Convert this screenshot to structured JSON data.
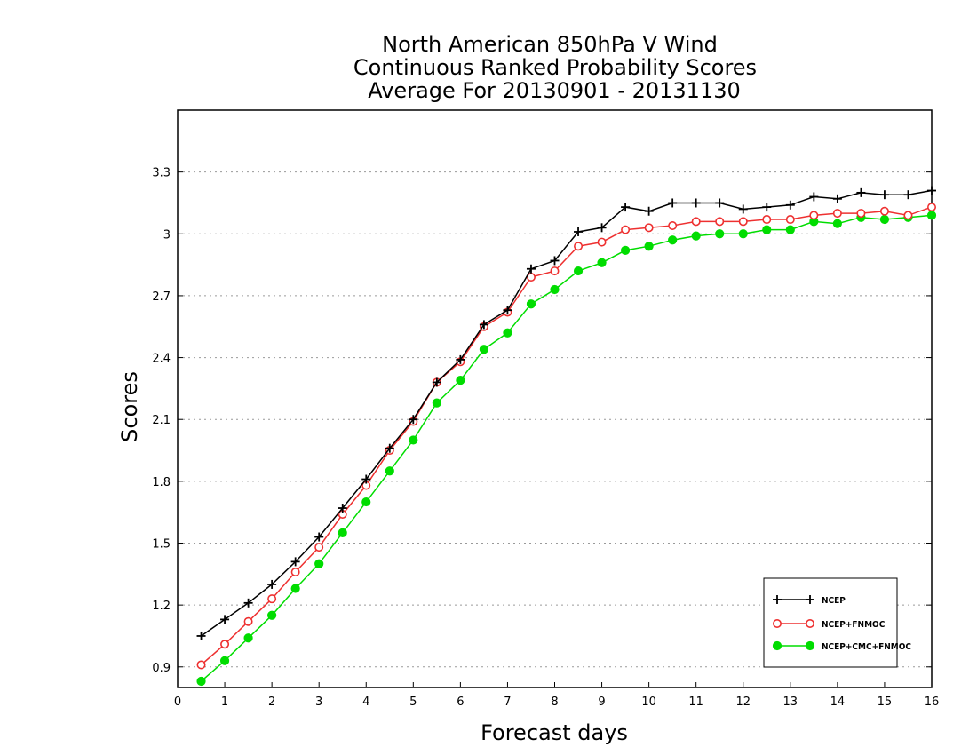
{
  "chart_data": {
    "type": "line",
    "title_lines": [
      "North American 850hPa V Wind",
      "Continuous Ranked Probability Scores",
      "Average For 20130901 - 20131130"
    ],
    "xlabel": "Forecast days",
    "ylabel": "Scores",
    "xlim": [
      0,
      16
    ],
    "ylim": [
      0.8,
      3.6
    ],
    "x_ticks": [
      "0",
      "1",
      "2",
      "3",
      "4",
      "5",
      "6",
      "7",
      "8",
      "9",
      "10",
      "11",
      "12",
      "13",
      "14",
      "15",
      "16"
    ],
    "y_ticks": [
      "0.9",
      "1.2",
      "1.5",
      "1.8",
      "2.1",
      "2.4",
      "2.7",
      "3",
      "3.3"
    ],
    "y_tick_values": [
      0.9,
      1.2,
      1.5,
      1.8,
      2.1,
      2.4,
      2.7,
      3.0,
      3.3
    ],
    "grid": "horizontal dotted",
    "legend_position": "bottom-right",
    "x": [
      0.5,
      1.0,
      1.5,
      2.0,
      2.5,
      3.0,
      3.5,
      4.0,
      4.5,
      5.0,
      5.5,
      6.0,
      6.5,
      7.0,
      7.5,
      8.0,
      8.5,
      9.0,
      9.5,
      10.0,
      10.5,
      11.0,
      11.5,
      12.0,
      12.5,
      13.0,
      13.5,
      14.0,
      14.5,
      15.0,
      15.5,
      16.0
    ],
    "series": [
      {
        "name": "NCEP",
        "color": "#000000",
        "marker": "plus",
        "values": [
          1.05,
          1.13,
          1.21,
          1.3,
          1.41,
          1.53,
          1.67,
          1.81,
          1.96,
          2.1,
          2.28,
          2.39,
          2.56,
          2.63,
          2.83,
          2.87,
          3.01,
          3.03,
          3.13,
          3.11,
          3.15,
          3.15,
          3.15,
          3.12,
          3.13,
          3.14,
          3.18,
          3.17,
          3.2,
          3.19,
          3.19,
          3.21
        ]
      },
      {
        "name": "NCEP+FNMOC",
        "color": "#ee3030",
        "marker": "open-circle",
        "values": [
          0.91,
          1.01,
          1.12,
          1.23,
          1.36,
          1.48,
          1.64,
          1.78,
          1.95,
          2.09,
          2.28,
          2.38,
          2.55,
          2.62,
          2.79,
          2.82,
          2.94,
          2.96,
          3.02,
          3.03,
          3.04,
          3.06,
          3.06,
          3.06,
          3.07,
          3.07,
          3.09,
          3.1,
          3.1,
          3.11,
          3.09,
          3.13
        ]
      },
      {
        "name": "NCEP+CMC+FNMOC",
        "color": "#00dd00",
        "marker": "filled-circle",
        "values": [
          0.83,
          0.93,
          1.04,
          1.15,
          1.28,
          1.4,
          1.55,
          1.7,
          1.85,
          2.0,
          2.18,
          2.29,
          2.44,
          2.52,
          2.66,
          2.73,
          2.82,
          2.86,
          2.92,
          2.94,
          2.97,
          2.99,
          3.0,
          3.0,
          3.02,
          3.02,
          3.06,
          3.05,
          3.08,
          3.07,
          3.08,
          3.09
        ]
      }
    ]
  }
}
